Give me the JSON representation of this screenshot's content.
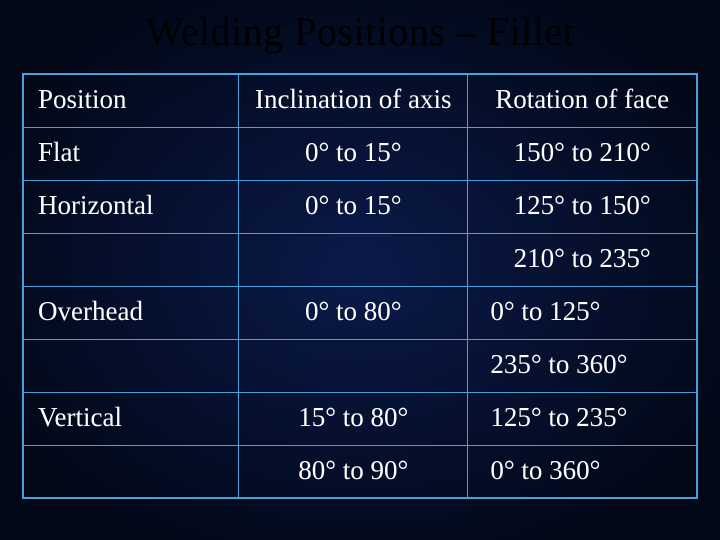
{
  "title": "Welding Positions – Fillet",
  "table": {
    "border_color": "#4aa0d8",
    "text_color": "#ffffff",
    "title_color": "#000000",
    "fontsize_title": 40,
    "fontsize_cell": 27,
    "columns": [
      "Position",
      "Inclination of axis",
      "Rotation of face"
    ],
    "rows": [
      {
        "pos": "Flat",
        "inc": "0° to 15°",
        "rot": "150° to 210°"
      },
      {
        "pos": "Horizontal",
        "inc": "0° to 15°",
        "rot": "125° to 150°"
      },
      {
        "pos": "",
        "inc": "",
        "rot": "210° to 235°"
      },
      {
        "pos": "Overhead",
        "inc": "0° to 80°",
        "rot": "0° to 125°"
      },
      {
        "pos": "",
        "inc": "",
        "rot": "235° to 360°"
      },
      {
        "pos": "Vertical",
        "inc": "15° to 80°",
        "rot": "125° to 235°"
      },
      {
        "pos": "",
        "inc": "80° to 90°",
        "rot": "0° to 360°"
      }
    ]
  }
}
